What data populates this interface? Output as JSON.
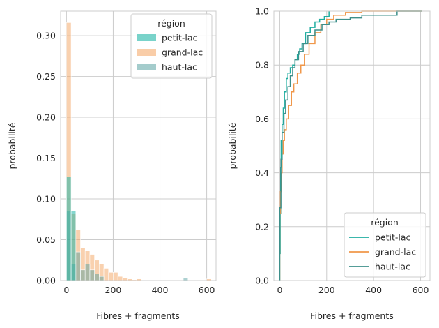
{
  "chart_data": [
    {
      "type": "bar",
      "subtype": "histogram",
      "stat": "probability",
      "xlabel": "Fibres + fragments",
      "ylabel": "probabilité",
      "xlim": [
        -25,
        640
      ],
      "ylim": [
        0,
        0.33
      ],
      "xticks": [
        0,
        200,
        400,
        600
      ],
      "yticks": [
        0,
        0.05,
        0.1,
        0.15,
        0.2,
        0.25,
        0.3
      ],
      "ytick_labels": [
        "0.00",
        "0.05",
        "0.10",
        "0.15",
        "0.20",
        "0.25",
        "0.30"
      ],
      "bin_width": 20,
      "bin_start": 0,
      "grid": true,
      "legend": {
        "title": "région",
        "placement": "top-right"
      },
      "series": [
        {
          "name": "petit-lac",
          "color": "#1fb5a6",
          "opacity": 0.55,
          "values": [
            0.127,
            0.085,
            0.0,
            0.0,
            0.0,
            0.0,
            0.0,
            0.0,
            0.0,
            0.0,
            0.0
          ]
        },
        {
          "name": "grand-lac",
          "color": "#f4a460",
          "opacity": 0.5,
          "values": [
            0.316,
            0.082,
            0.062,
            0.04,
            0.037,
            0.032,
            0.025,
            0.02,
            0.015,
            0.01,
            0.01,
            0.005,
            0.003,
            0.002,
            0.001,
            0.002,
            0.0,
            0.0,
            0.0,
            0.0,
            0.0,
            0.0,
            0.0,
            0.0,
            0.0,
            0.0,
            0.0,
            0.0,
            0.0,
            0.0,
            0.002
          ]
        },
        {
          "name": "haut-lac",
          "color": "#4a9a9a",
          "opacity": 0.45,
          "values": [
            0.085,
            0.02,
            0.035,
            0.013,
            0.02,
            0.013,
            0.008,
            0.005,
            0.0,
            0.0,
            0.0,
            0.0,
            0.0,
            0.0,
            0.0,
            0.0,
            0.0,
            0.0,
            0.0,
            0.0,
            0.0,
            0.0,
            0.0,
            0.0,
            0.0,
            0.003
          ]
        }
      ]
    },
    {
      "type": "line",
      "subtype": "ecdf",
      "xlabel": "Fibres + fragments",
      "ylabel": "probabilité",
      "xlim": [
        -25,
        640
      ],
      "ylim": [
        0,
        1.0
      ],
      "xticks": [
        0,
        200,
        400,
        600
      ],
      "yticks": [
        0,
        0.2,
        0.4,
        0.6,
        0.8,
        1.0
      ],
      "ytick_labels": [
        "0.0",
        "0.2",
        "0.4",
        "0.6",
        "0.8",
        "1.0"
      ],
      "grid": true,
      "legend": {
        "title": "région",
        "placement": "lower-right"
      },
      "series": [
        {
          "name": "petit-lac",
          "color": "#1fada0",
          "points": [
            [
              0,
              0
            ],
            [
              0,
              0.1
            ],
            [
              2,
              0.25
            ],
            [
              4,
              0.42
            ],
            [
              6,
              0.52
            ],
            [
              10,
              0.58
            ],
            [
              15,
              0.64
            ],
            [
              20,
              0.7
            ],
            [
              28,
              0.75
            ],
            [
              35,
              0.77
            ],
            [
              45,
              0.79
            ],
            [
              55,
              0.8
            ],
            [
              65,
              0.82
            ],
            [
              75,
              0.84
            ],
            [
              85,
              0.86
            ],
            [
              95,
              0.88
            ],
            [
              110,
              0.92
            ],
            [
              130,
              0.94
            ],
            [
              150,
              0.96
            ],
            [
              170,
              0.97
            ],
            [
              190,
              0.98
            ],
            [
              210,
              1.0
            ]
          ]
        },
        {
          "name": "grand-lac",
          "color": "#f0974a",
          "points": [
            [
              0,
              0
            ],
            [
              0,
              0.25
            ],
            [
              3,
              0.33
            ],
            [
              6,
              0.4
            ],
            [
              10,
              0.47
            ],
            [
              15,
              0.52
            ],
            [
              20,
              0.56
            ],
            [
              28,
              0.6
            ],
            [
              38,
              0.65
            ],
            [
              50,
              0.7
            ],
            [
              60,
              0.73
            ],
            [
              75,
              0.77
            ],
            [
              90,
              0.8
            ],
            [
              105,
              0.84
            ],
            [
              125,
              0.88
            ],
            [
              150,
              0.92
            ],
            [
              175,
              0.95
            ],
            [
              200,
              0.97
            ],
            [
              230,
              0.985
            ],
            [
              280,
              0.995
            ],
            [
              350,
              1.0
            ],
            [
              605,
              1.0
            ]
          ]
        },
        {
          "name": "haut-lac",
          "color": "#3d8f8a",
          "points": [
            [
              0,
              0
            ],
            [
              0,
              0.27
            ],
            [
              5,
              0.45
            ],
            [
              10,
              0.55
            ],
            [
              18,
              0.62
            ],
            [
              25,
              0.67
            ],
            [
              35,
              0.72
            ],
            [
              45,
              0.76
            ],
            [
              55,
              0.79
            ],
            [
              65,
              0.82
            ],
            [
              80,
              0.85
            ],
            [
              100,
              0.88
            ],
            [
              120,
              0.91
            ],
            [
              150,
              0.93
            ],
            [
              180,
              0.95
            ],
            [
              210,
              0.96
            ],
            [
              240,
              0.97
            ],
            [
              300,
              0.975
            ],
            [
              350,
              0.985
            ],
            [
              500,
              0.985
            ],
            [
              500,
              1.0
            ],
            [
              605,
              1.0
            ]
          ]
        }
      ]
    }
  ]
}
